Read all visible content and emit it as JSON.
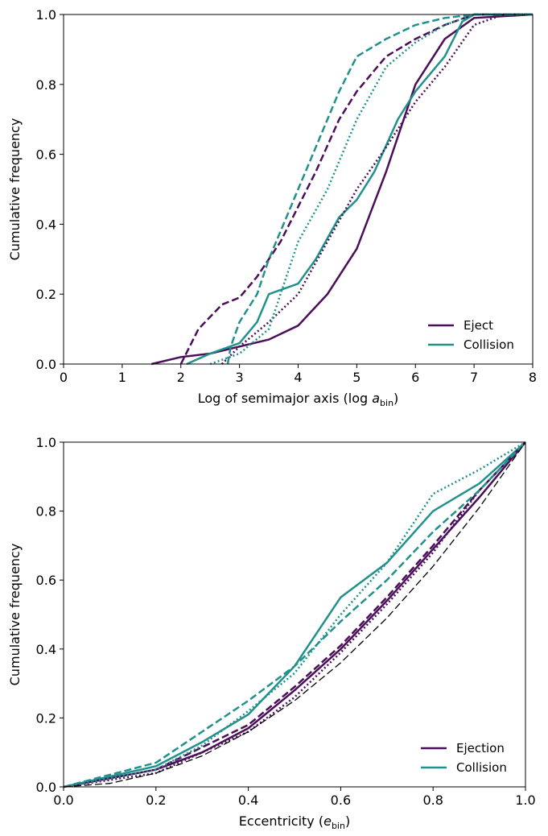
{
  "chart_data": [
    {
      "type": "line",
      "ylabel": "Cumulative frequency",
      "xlabel_parts": [
        "Log of semimajor axis (log ",
        "a",
        "bin",
        ")"
      ],
      "xlim": [
        0,
        8
      ],
      "xticks": [
        0,
        1,
        2,
        3,
        4,
        5,
        6,
        7,
        8
      ],
      "ylim": [
        0,
        1
      ],
      "yticks": [
        {
          "value": 0,
          "label": "0.0"
        },
        {
          "value": 0.2,
          "label": "0.2"
        },
        {
          "value": 0.4,
          "label": "0.4"
        },
        {
          "value": 0.6,
          "label": "0.6"
        },
        {
          "value": 0.8,
          "label": "0.8"
        },
        {
          "value": 1,
          "label": "1.0"
        }
      ],
      "legend": "lower right",
      "series": [
        {
          "name": "Eject",
          "color": "#4b0e5a",
          "dash": "solid",
          "width": 2.5,
          "x": [
            1.5,
            2.0,
            2.5,
            3.0,
            3.5,
            4.0,
            4.5,
            5.0,
            5.5,
            6.0,
            6.5,
            7.0,
            8.0
          ],
          "values": [
            0,
            0.02,
            0.03,
            0.05,
            0.07,
            0.11,
            0.2,
            0.33,
            0.55,
            0.8,
            0.93,
            0.99,
            1.0
          ]
        },
        {
          "name": "Collision",
          "color": "#21918c",
          "dash": "solid",
          "width": 2.5,
          "x": [
            2.1,
            2.5,
            3.0,
            3.3,
            3.5,
            4.0,
            4.3,
            4.7,
            5.0,
            5.3,
            5.7,
            6.0,
            6.5,
            6.8,
            7.0,
            8.0
          ],
          "values": [
            0,
            0.03,
            0.06,
            0.12,
            0.2,
            0.23,
            0.3,
            0.42,
            0.47,
            0.55,
            0.7,
            0.78,
            0.88,
            0.98,
            1.0,
            1.0
          ]
        },
        {
          "color": "#4b0e5a",
          "dash": "dashed",
          "width": 2.5,
          "x": [
            2.0,
            2.3,
            2.7,
            3.0,
            3.3,
            3.7,
            4.0,
            4.3,
            4.7,
            5.0,
            5.5,
            6.0,
            6.5,
            7.0,
            8.0
          ],
          "values": [
            0,
            0.1,
            0.17,
            0.19,
            0.25,
            0.35,
            0.45,
            0.55,
            0.7,
            0.78,
            0.88,
            0.93,
            0.97,
            1.0,
            1.0
          ]
        },
        {
          "color": "#4b0e5a",
          "dash": "dotted",
          "width": 2.5,
          "x": [
            2.7,
            3.0,
            3.5,
            4.0,
            4.5,
            5.0,
            5.5,
            6.0,
            6.5,
            7.0,
            7.5,
            8.0
          ],
          "values": [
            0,
            0.05,
            0.12,
            0.2,
            0.35,
            0.5,
            0.62,
            0.75,
            0.85,
            0.97,
            1.0,
            1.0
          ]
        },
        {
          "color": "#21918c",
          "dash": "dashed",
          "width": 2.5,
          "x": [
            2.8,
            2.85,
            3.0,
            3.3,
            3.5,
            4.0,
            4.3,
            4.7,
            5.0,
            5.5,
            6.0,
            6.5,
            7.0,
            8.0
          ],
          "values": [
            0,
            0.05,
            0.12,
            0.2,
            0.3,
            0.5,
            0.62,
            0.78,
            0.88,
            0.93,
            0.97,
            0.99,
            1.0,
            1.0
          ]
        },
        {
          "color": "#21918c",
          "dash": "dotted",
          "width": 2.5,
          "x": [
            2.5,
            3.0,
            3.5,
            3.7,
            4.0,
            4.5,
            5.0,
            5.5,
            6.0,
            6.5,
            7.0,
            8.0
          ],
          "values": [
            0,
            0.03,
            0.1,
            0.2,
            0.35,
            0.5,
            0.7,
            0.85,
            0.92,
            0.97,
            1.0,
            1.0
          ]
        }
      ]
    },
    {
      "type": "line",
      "ylabel": "Cumulative frequency",
      "xlabel_parts": [
        "Eccentricity (",
        "e",
        "bin",
        ")"
      ],
      "xlim": [
        0,
        1
      ],
      "xticks": [
        {
          "value": 0,
          "label": "0.0"
        },
        {
          "value": 0.2,
          "label": "0.2"
        },
        {
          "value": 0.4,
          "label": "0.4"
        },
        {
          "value": 0.6,
          "label": "0.6"
        },
        {
          "value": 0.8,
          "label": "0.8"
        },
        {
          "value": 1,
          "label": "1.0"
        }
      ],
      "ylim": [
        0,
        1
      ],
      "yticks": [
        {
          "value": 0,
          "label": "0.0"
        },
        {
          "value": 0.2,
          "label": "0.2"
        },
        {
          "value": 0.4,
          "label": "0.4"
        },
        {
          "value": 0.6,
          "label": "0.6"
        },
        {
          "value": 0.8,
          "label": "0.8"
        },
        {
          "value": 1,
          "label": "1.0"
        }
      ],
      "legend": "lower right",
      "series": [
        {
          "name": "Ejection",
          "color": "#4b0e5a",
          "dash": "solid",
          "width": 2.5,
          "x": [
            0,
            0.2,
            0.3,
            0.4,
            0.5,
            0.6,
            0.7,
            0.8,
            0.9,
            1.0
          ],
          "values": [
            0,
            0.05,
            0.1,
            0.17,
            0.28,
            0.4,
            0.54,
            0.69,
            0.84,
            1.0
          ]
        },
        {
          "name": "Collision",
          "color": "#21918c",
          "dash": "solid",
          "width": 2.5,
          "x": [
            0,
            0.2,
            0.3,
            0.4,
            0.5,
            0.6,
            0.7,
            0.8,
            0.9,
            1.0
          ],
          "values": [
            0,
            0.06,
            0.13,
            0.21,
            0.35,
            0.55,
            0.65,
            0.8,
            0.88,
            1.0
          ]
        },
        {
          "color": "#4b0e5a",
          "dash": "dashed",
          "width": 2.5,
          "x": [
            0,
            0.2,
            0.4,
            0.5,
            0.6,
            0.7,
            0.8,
            0.9,
            1.0
          ],
          "values": [
            0,
            0.05,
            0.18,
            0.29,
            0.41,
            0.55,
            0.7,
            0.86,
            1.0
          ]
        },
        {
          "color": "#4b0e5a",
          "dash": "dotted",
          "width": 2.5,
          "x": [
            0,
            0.2,
            0.4,
            0.5,
            0.6,
            0.7,
            0.8,
            0.9,
            1.0
          ],
          "values": [
            0,
            0.04,
            0.16,
            0.26,
            0.39,
            0.53,
            0.68,
            0.86,
            1.0
          ]
        },
        {
          "color": "#21918c",
          "dash": "dashed",
          "width": 2.5,
          "x": [
            0,
            0.2,
            0.3,
            0.4,
            0.5,
            0.6,
            0.7,
            0.8,
            0.9,
            1.0
          ],
          "values": [
            0,
            0.07,
            0.16,
            0.25,
            0.35,
            0.48,
            0.6,
            0.74,
            0.86,
            1.0
          ]
        },
        {
          "color": "#21918c",
          "dash": "dotted",
          "width": 2.5,
          "x": [
            0,
            0.2,
            0.3,
            0.4,
            0.5,
            0.6,
            0.7,
            0.8,
            0.9,
            1.0
          ],
          "values": [
            0,
            0.05,
            0.12,
            0.22,
            0.33,
            0.5,
            0.65,
            0.85,
            0.92,
            1.0
          ]
        },
        {
          "color": "#000000",
          "dash": "dashed",
          "width": 1.3,
          "x": [
            0,
            0.1,
            0.2,
            0.3,
            0.4,
            0.5,
            0.6,
            0.7,
            0.8,
            0.9,
            1.0
          ],
          "values": [
            0,
            0.01,
            0.04,
            0.09,
            0.16,
            0.25,
            0.36,
            0.49,
            0.64,
            0.81,
            1.0
          ]
        }
      ]
    }
  ]
}
